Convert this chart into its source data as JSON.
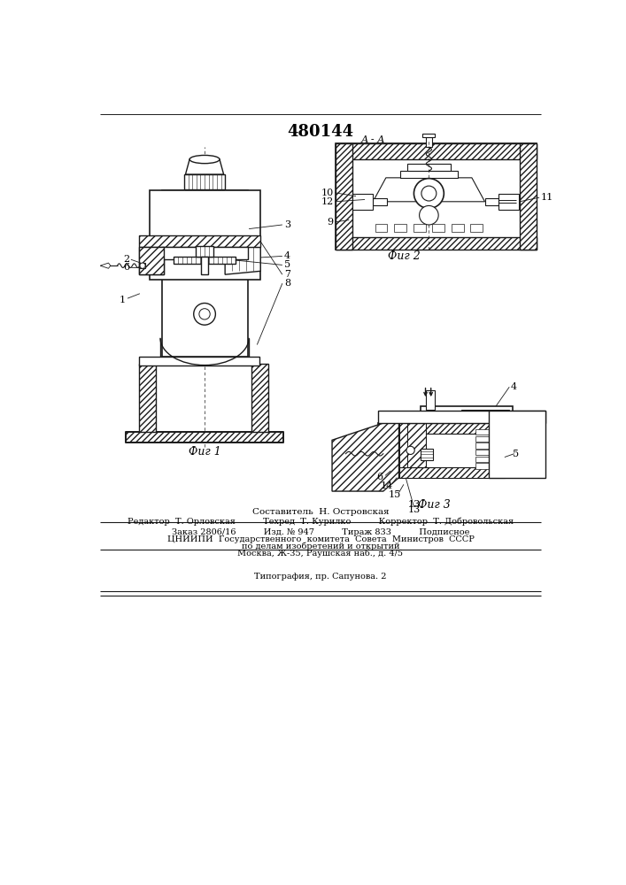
{
  "title": "480144",
  "bg_color": "#ffffff",
  "line_color": "#1a1a1a",
  "fig1_label": "Фиг 1",
  "fig2_label": "Фиг 2",
  "fig3_label": "Фиг 3",
  "section_label": "А - А",
  "footer": {
    "line1": "Составитель  Н. Островская",
    "line2": "Редактор  Т. Орловская          Техред  Т. Курилко          Корректор  Т. Добровольская",
    "line3": "Заказ 2806/16          Изд. № 947          Тираж 833          Подписное",
    "line4": "ЦНИИПИ  Государственного  комитета  Совета  Министров  СССР",
    "line5": "по делам изобретений и открытий",
    "line6": "Москва, Ж-35, Раушская наб., д. 4/5",
    "line7": "Типография, пр. Сапунова. 2"
  }
}
